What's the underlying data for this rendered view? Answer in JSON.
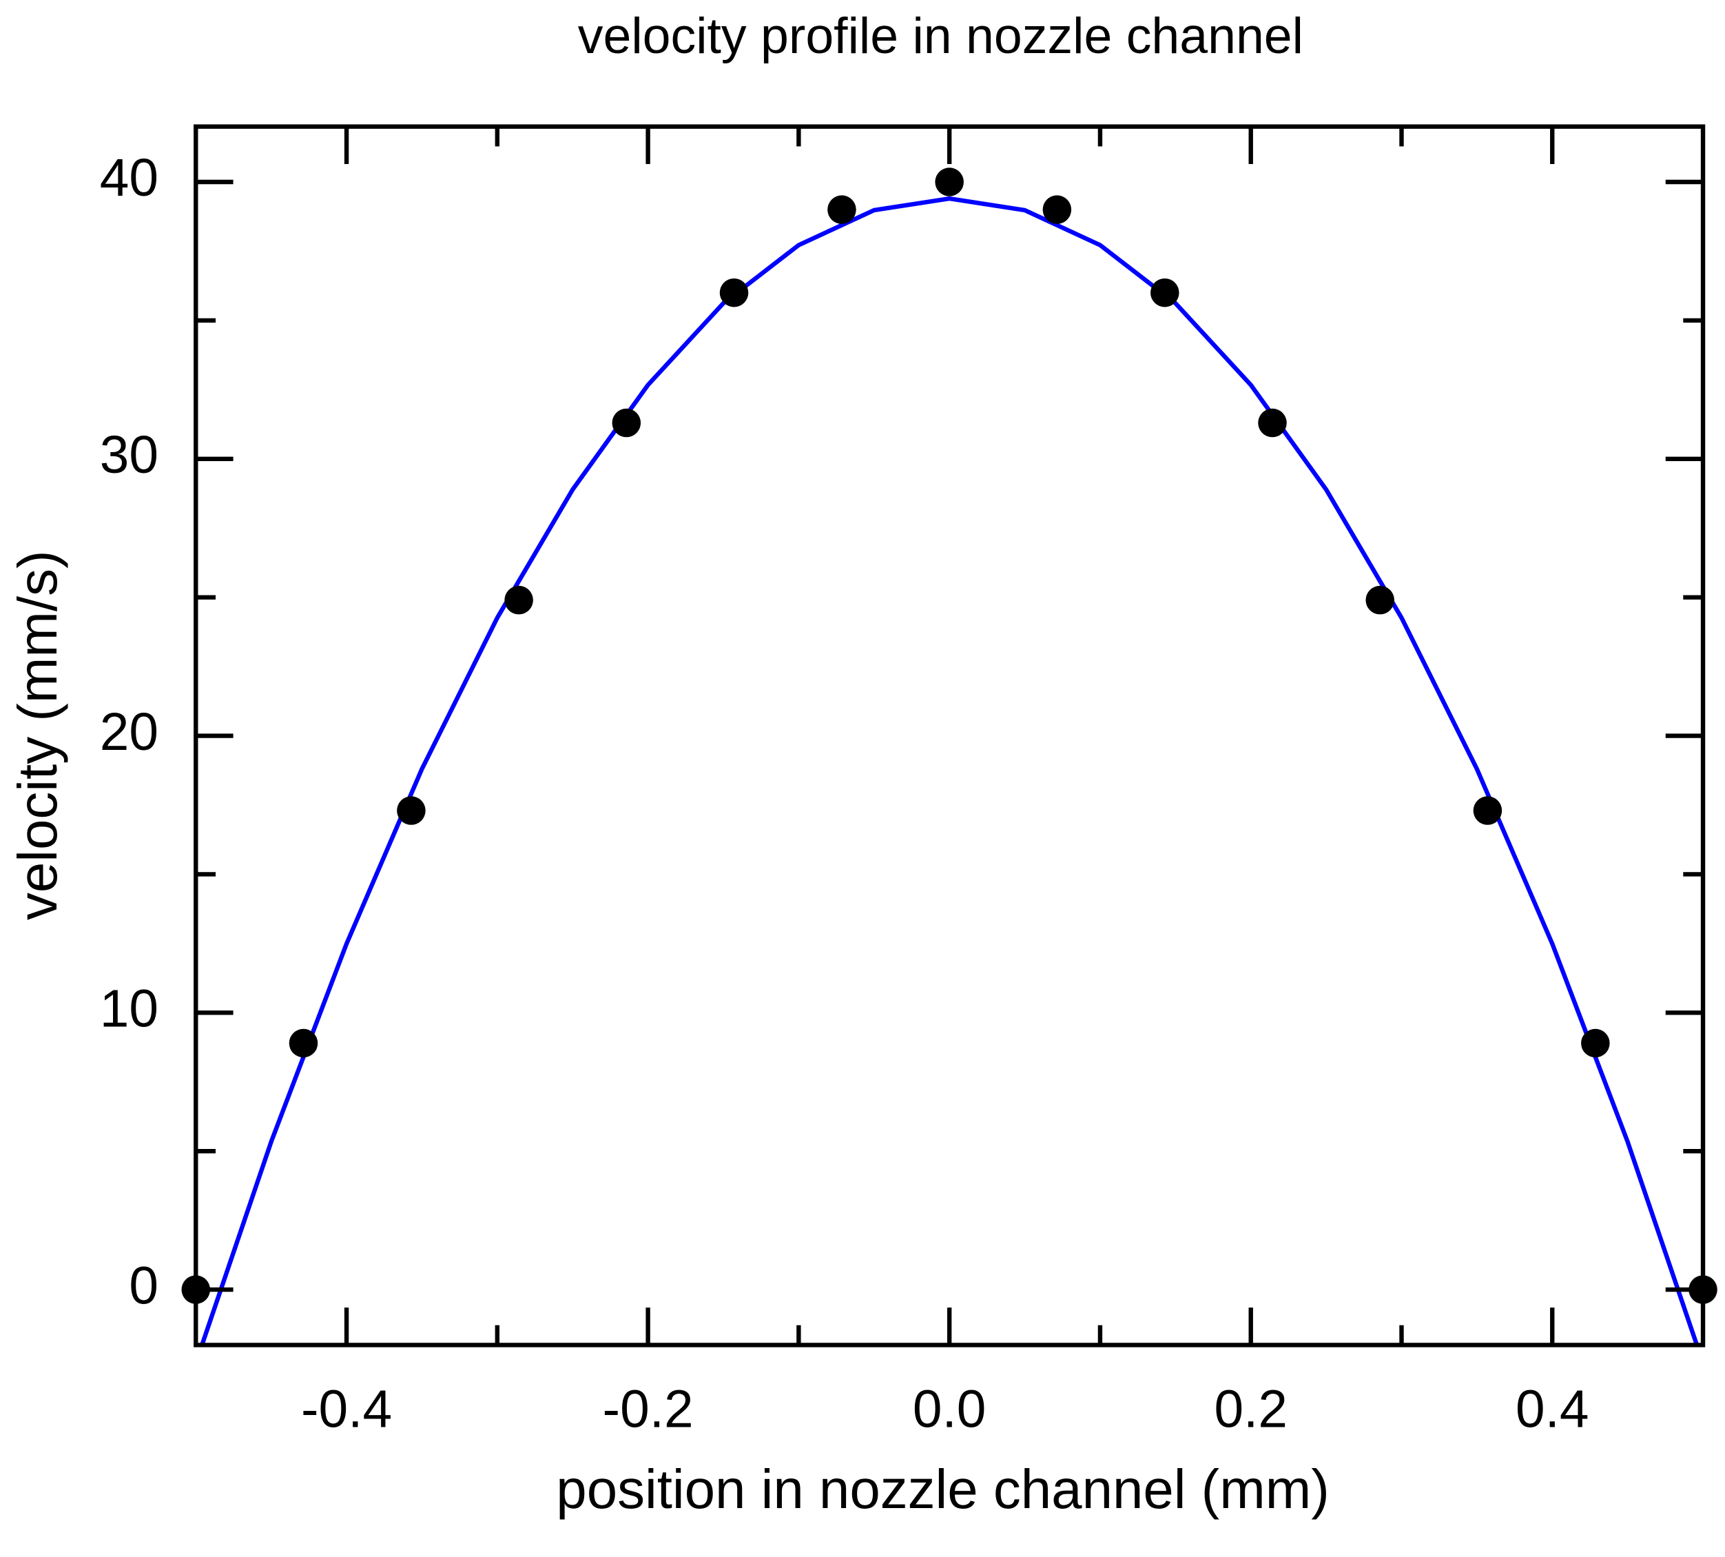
{
  "chart_data": {
    "type": "scatter",
    "title": "velocity profile in nozzle channel",
    "xlabel": "position in nozzle channel (mm)",
    "ylabel": "velocity (mm/s)",
    "xlim": [
      -0.5,
      0.5
    ],
    "ylim": [
      -2,
      42
    ],
    "xticks": [
      -0.4,
      -0.2,
      {
        "value": 0,
        "label": "0.0"
      },
      0.2,
      0.4
    ],
    "xminorticks": [
      -0.3,
      -0.1,
      0.1,
      0.3
    ],
    "yticks": [
      0,
      10,
      20,
      30,
      40
    ],
    "yminorticks": [
      5,
      15,
      25,
      35
    ],
    "series": [
      {
        "type": "scatter",
        "color": "#000000",
        "x": [
          -0.5,
          -0.4286,
          -0.3571,
          -0.2857,
          -0.2143,
          -0.1429,
          -0.0714,
          0,
          0.0714,
          0.1429,
          0.2143,
          0.2857,
          0.3571,
          0.4286,
          0.5
        ],
        "values": [
          0,
          8.9,
          17.3,
          24.9,
          31.3,
          36,
          39,
          40,
          39,
          36,
          31.3,
          24.9,
          17.3,
          8.9,
          0
        ]
      },
      {
        "type": "line",
        "color": "#0000ff",
        "x": [
          -0.5,
          -0.45,
          -0.4,
          -0.35,
          -0.3,
          -0.25,
          -0.2,
          -0.15,
          -0.1,
          -0.05,
          0,
          0.05,
          0.1,
          0.15,
          0.2,
          0.25,
          0.3,
          0.35,
          0.4,
          0.45,
          0.5
        ],
        "values": [
          -2.65,
          5.34,
          12.49,
          18.8,
          24.26,
          28.89,
          32.67,
          35.62,
          37.72,
          38.98,
          39.4,
          38.98,
          37.72,
          35.62,
          32.67,
          28.89,
          24.26,
          18.8,
          12.49,
          5.34,
          -2.65
        ]
      }
    ]
  }
}
